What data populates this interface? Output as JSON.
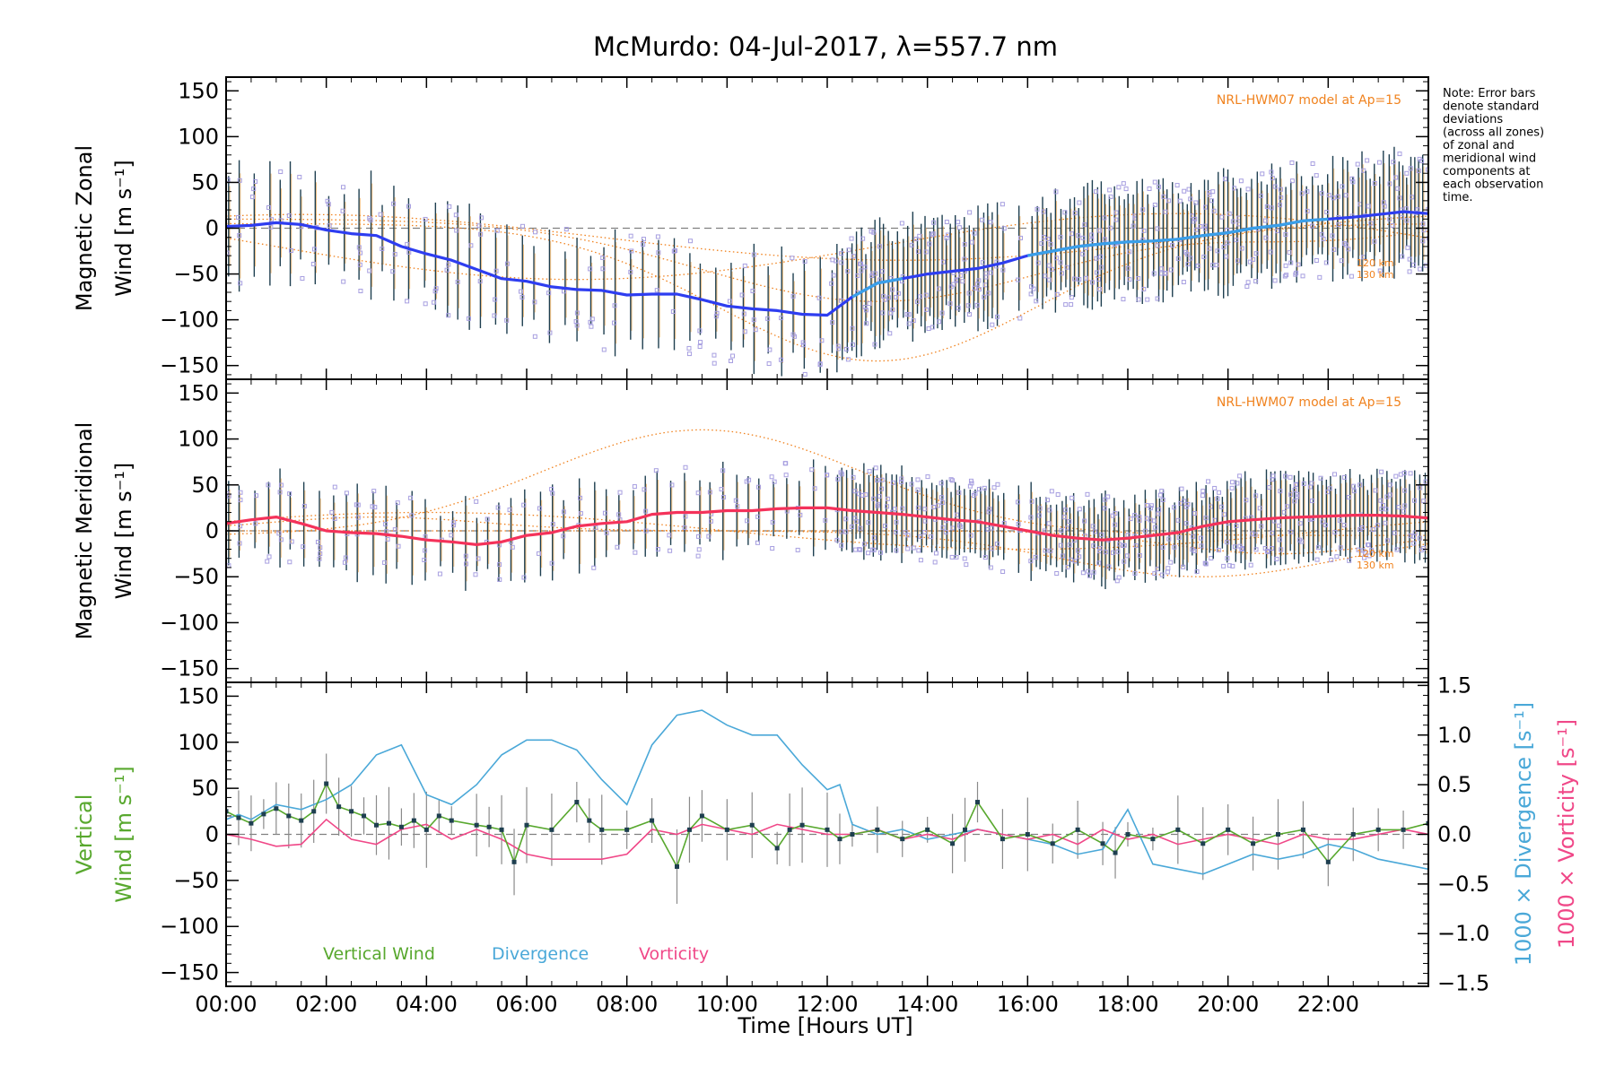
{
  "chart_data": {
    "type": "line",
    "title": "McMurdo: 04-Jul-2017, λ=557.7 nm",
    "xlabel": "Time [Hours UT]",
    "x_tick_labels": [
      "00:00",
      "02:00",
      "04:00",
      "06:00",
      "08:00",
      "10:00",
      "12:00",
      "14:00",
      "16:00",
      "18:00",
      "20:00",
      "22:00"
    ],
    "x_tick_hours": [
      0,
      2,
      4,
      6,
      8,
      10,
      12,
      14,
      16,
      18,
      20,
      22
    ],
    "xlim": [
      0,
      24
    ],
    "note_lines": [
      "Note: Error bars",
      "denote standard",
      "deviations",
      "(across all zones)",
      "of zonal and",
      "meridional wind",
      "components at",
      "each observation",
      "time."
    ],
    "colors": {
      "zonal": "#2e3df0",
      "zonal_light": "#3aa0e8",
      "meridional": "#f4325a",
      "vertical": "#58a82e",
      "divergence": "#4aa8d8",
      "vorticity": "#f04888",
      "model": "#f0821e",
      "scatter": "#a79fe0",
      "errorbar": "#1e3f50"
    },
    "panels": [
      {
        "id": "zonal",
        "ylabel_line1": "Magnetic Zonal",
        "ylabel_line2": "Wind [m s⁻¹]",
        "ylim": [
          -165,
          165
        ],
        "y_ticks": [
          150,
          100,
          50,
          0,
          -50,
          -100,
          -150
        ],
        "y_tick_labels": [
          "150",
          "100",
          "50",
          "0",
          "−50",
          "−100",
          "−150"
        ],
        "model_label": "NRL-HWM07 model at Ap=15",
        "model_km_labels": [
          "120 km",
          "130 km"
        ],
        "series": [
          {
            "name": "Zonal wind",
            "x": [
              0,
              0.5,
              1,
              1.5,
              2,
              2.5,
              3,
              3.5,
              4,
              4.5,
              5,
              5.5,
              6,
              6.5,
              7,
              7.5,
              8,
              8.5,
              9,
              9.5,
              10,
              10.5,
              11,
              11.5,
              12,
              12.5,
              13,
              13.5,
              14,
              14.5,
              15,
              15.5,
              16,
              16.5,
              17,
              17.5,
              18,
              18.5,
              19,
              19.5,
              20,
              20.5,
              21,
              21.5,
              22,
              22.5,
              23,
              23.5,
              24
            ],
            "y": [
              2,
              3,
              6,
              4,
              -2,
              -6,
              -8,
              -20,
              -28,
              -35,
              -45,
              -55,
              -58,
              -64,
              -67,
              -68,
              -73,
              -72,
              -72,
              -78,
              -85,
              -88,
              -90,
              -94,
              -95,
              -75,
              -60,
              -55,
              -50,
              -47,
              -44,
              -38,
              -30,
              -25,
              -20,
              -17,
              -15,
              -14,
              -12,
              -8,
              -5,
              0,
              3,
              8,
              10,
              12,
              15,
              18,
              16
            ]
          }
        ]
      },
      {
        "id": "meridional",
        "ylabel_line1": "Magnetic Meridional",
        "ylabel_line2": "Wind [m s⁻¹]",
        "ylim": [
          -165,
          165
        ],
        "y_ticks": [
          150,
          100,
          50,
          0,
          -50,
          -100,
          -150
        ],
        "y_tick_labels": [
          "150",
          "100",
          "50",
          "0",
          "−50",
          "−100",
          "−150"
        ],
        "model_label": "NRL-HWM07 model at Ap=15",
        "model_km_labels": [
          "120 km",
          "130 km"
        ],
        "series": [
          {
            "name": "Meridional wind",
            "x": [
              0,
              0.5,
              1,
              1.5,
              2,
              2.5,
              3,
              3.5,
              4,
              4.5,
              5,
              5.5,
              6,
              6.5,
              7,
              7.5,
              8,
              8.5,
              9,
              9.5,
              10,
              10.5,
              11,
              11.5,
              12,
              12.5,
              13,
              13.5,
              14,
              14.5,
              15,
              15.5,
              16,
              16.5,
              17,
              17.5,
              18,
              18.5,
              19,
              19.5,
              20,
              20.5,
              21,
              21.5,
              22,
              22.5,
              23,
              23.5,
              24
            ],
            "y": [
              8,
              12,
              15,
              8,
              0,
              -2,
              -3,
              -6,
              -10,
              -12,
              -15,
              -12,
              -5,
              -2,
              5,
              8,
              10,
              18,
              20,
              20,
              22,
              22,
              24,
              25,
              25,
              22,
              20,
              18,
              15,
              12,
              10,
              5,
              0,
              -5,
              -8,
              -10,
              -8,
              -5,
              -2,
              5,
              10,
              12,
              14,
              15,
              16,
              17,
              17,
              16,
              14
            ]
          }
        ]
      },
      {
        "id": "vertical",
        "ylabel_line1": "Vertical",
        "ylabel_line2": "Wind [m s⁻¹]",
        "ylim": [
          -165,
          165
        ],
        "y_ticks": [
          150,
          100,
          50,
          0,
          -50,
          -100,
          -150
        ],
        "y_tick_labels": [
          "150",
          "100",
          "50",
          "0",
          "−50",
          "−100",
          "−150"
        ],
        "right_axis_label_1": "1000 × Divergence [s⁻¹]",
        "right_axis_label_2": "1000 × Vorticity [s⁻¹]",
        "right_ylim": [
          -1.5,
          1.5
        ],
        "right_ticks": [
          1.5,
          1.0,
          0.5,
          0.0,
          -0.5,
          -1.0,
          -1.5
        ],
        "right_tick_labels": [
          "1.5",
          "1.0",
          "0.5",
          "0.0",
          "−0.5",
          "−1.0",
          "−1.5"
        ],
        "legend": [
          "Vertical Wind",
          "Divergence",
          "Vorticity"
        ],
        "series": [
          {
            "name": "Vertical Wind",
            "x": [
              0,
              0.25,
              0.5,
              0.75,
              1,
              1.25,
              1.5,
              1.75,
              2,
              2.25,
              2.5,
              2.75,
              3,
              3.25,
              3.5,
              3.75,
              4,
              4.25,
              4.5,
              5,
              5.25,
              5.5,
              5.75,
              6,
              6.5,
              7,
              7.25,
              7.5,
              8,
              8.5,
              9,
              9.25,
              9.5,
              10,
              10.5,
              11,
              11.25,
              11.5,
              12,
              12.25,
              12.5,
              13,
              13.5,
              14,
              14.5,
              14.75,
              15,
              15.5,
              16,
              16.5,
              17,
              17.5,
              17.75,
              18,
              18.5,
              19,
              19.5,
              20,
              20.5,
              21,
              21.5,
              22,
              22.5,
              23,
              23.5,
              24
            ],
            "y": [
              25,
              18,
              12,
              22,
              28,
              20,
              15,
              25,
              55,
              30,
              25,
              20,
              10,
              12,
              8,
              15,
              5,
              20,
              15,
              10,
              8,
              5,
              -30,
              10,
              5,
              35,
              15,
              5,
              5,
              15,
              -35,
              5,
              20,
              5,
              10,
              -15,
              5,
              10,
              5,
              -5,
              0,
              5,
              -5,
              5,
              -10,
              5,
              35,
              -5,
              0,
              -10,
              5,
              -10,
              -20,
              0,
              -5,
              5,
              -10,
              5,
              -10,
              0,
              5,
              -30,
              0,
              5,
              5,
              12
            ]
          },
          {
            "name": "Divergence",
            "x": [
              0,
              0.25,
              0.5,
              1,
              1.5,
              2,
              2.5,
              3,
              3.5,
              4,
              4.5,
              5,
              5.5,
              6,
              6.5,
              7,
              7.5,
              8,
              8.5,
              9,
              9.5,
              10,
              10.5,
              11,
              11.5,
              12,
              12.25,
              12.5,
              13,
              13.5,
              14,
              14.5,
              15,
              15.5,
              16,
              16.5,
              17,
              17.5,
              18,
              18.5,
              19,
              19.5,
              20,
              20.5,
              21,
              21.5,
              22,
              22.5,
              23,
              23.5,
              24
            ],
            "y": [
              0.15,
              0.2,
              0.15,
              0.3,
              0.25,
              0.35,
              0.5,
              0.8,
              0.9,
              0.4,
              0.3,
              0.5,
              0.8,
              0.95,
              0.95,
              0.85,
              0.55,
              0.3,
              0.9,
              1.2,
              1.25,
              1.1,
              1.0,
              1.0,
              0.7,
              0.45,
              0.5,
              0.1,
              0.0,
              0.05,
              -0.05,
              0.0,
              0.05,
              0.0,
              -0.05,
              -0.1,
              -0.2,
              -0.15,
              0.25,
              -0.3,
              -0.35,
              -0.4,
              -0.3,
              -0.2,
              -0.25,
              -0.2,
              -0.1,
              -0.15,
              -0.25,
              -0.3,
              -0.35
            ]
          },
          {
            "name": "Vorticity",
            "x": [
              0,
              0.5,
              1,
              1.5,
              2,
              2.5,
              3,
              3.5,
              4,
              4.5,
              5,
              5.5,
              6,
              6.5,
              7,
              7.5,
              8,
              8.5,
              9,
              9.5,
              10,
              10.5,
              11,
              11.5,
              12,
              12.5,
              13,
              13.5,
              14,
              14.5,
              15,
              15.5,
              16,
              16.5,
              17,
              17.5,
              18,
              18.5,
              19,
              19.5,
              20,
              20.5,
              21,
              21.5,
              22,
              22.5,
              23,
              23.5,
              24
            ],
            "y": [
              0.0,
              -0.05,
              -0.12,
              -0.1,
              0.15,
              -0.05,
              -0.1,
              0.05,
              0.1,
              -0.05,
              0.05,
              -0.05,
              -0.2,
              -0.25,
              -0.25,
              -0.25,
              -0.2,
              0.05,
              0.0,
              0.1,
              0.05,
              0.0,
              0.1,
              0.05,
              0.0,
              0.0,
              0.05,
              -0.05,
              0.0,
              -0.05,
              0.05,
              0.0,
              -0.05,
              0.0,
              -0.1,
              0.05,
              -0.05,
              0.0,
              -0.1,
              -0.05,
              0.0,
              -0.05,
              -0.1,
              0.0,
              -0.05,
              -0.05,
              0.0,
              0.05,
              0.0
            ]
          }
        ]
      }
    ]
  }
}
